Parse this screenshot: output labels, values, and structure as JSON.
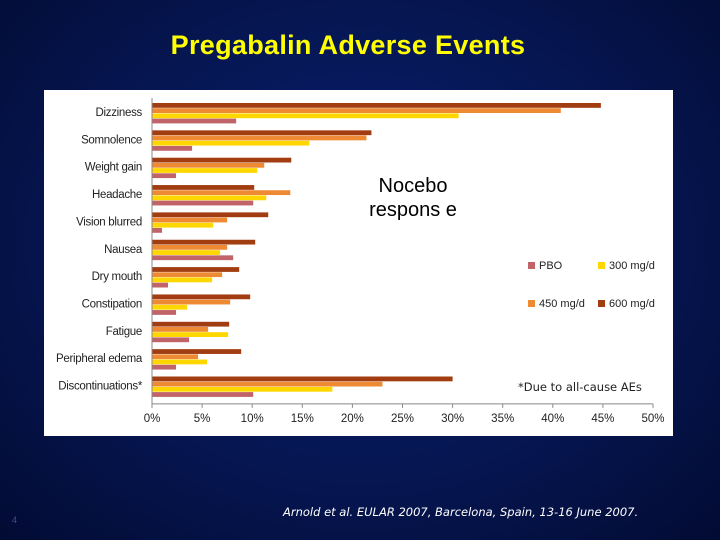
{
  "slide": {
    "title": "Pregabalin Adverse Events",
    "overlay_text": "Nocebo respons e",
    "footnote": "*Due to all-cause AEs",
    "citation": "Arnold  et al. EULAR 2007, Barcelona, Spain, 13-16 June 2007.",
    "slide_number": "4"
  },
  "chart_data": {
    "type": "bar",
    "orientation": "horizontal",
    "categories": [
      "Dizziness",
      "Somnolence",
      "Weight gain",
      "Headache",
      "Vision blurred",
      "Nausea",
      "Dry mouth",
      "Constipation",
      "Fatigue",
      "Peripheral edema",
      "Discontinuations*"
    ],
    "series": [
      {
        "name": "600 mg/d",
        "color": "#a23d12",
        "values": [
          44.8,
          21.9,
          13.9,
          10.2,
          11.6,
          10.3,
          8.7,
          9.8,
          7.7,
          8.9,
          30.0
        ]
      },
      {
        "name": "450 mg/d",
        "color": "#ef8a34",
        "values": [
          40.8,
          21.4,
          11.2,
          13.8,
          7.5,
          7.5,
          7.0,
          7.8,
          5.6,
          4.6,
          23.0
        ]
      },
      {
        "name": "300 mg/d",
        "color": "#ffd700",
        "values": [
          30.6,
          15.7,
          10.5,
          11.4,
          6.1,
          6.8,
          6.0,
          3.5,
          7.6,
          5.5,
          18.0
        ]
      },
      {
        "name": "PBO",
        "color": "#c0646a",
        "values": [
          8.4,
          4.0,
          2.4,
          10.1,
          1.0,
          8.1,
          1.6,
          2.4,
          3.7,
          2.4,
          10.1
        ]
      }
    ],
    "legend_order": [
      "PBO",
      "300 mg/d",
      "450 mg/d",
      "600 mg/d"
    ],
    "xlim": [
      0,
      50
    ],
    "xticks": [
      "0%",
      "5%",
      "10%",
      "15%",
      "20%",
      "25%",
      "30%",
      "35%",
      "40%",
      "45%",
      "50%"
    ],
    "legend_position": "right",
    "grid": false
  }
}
